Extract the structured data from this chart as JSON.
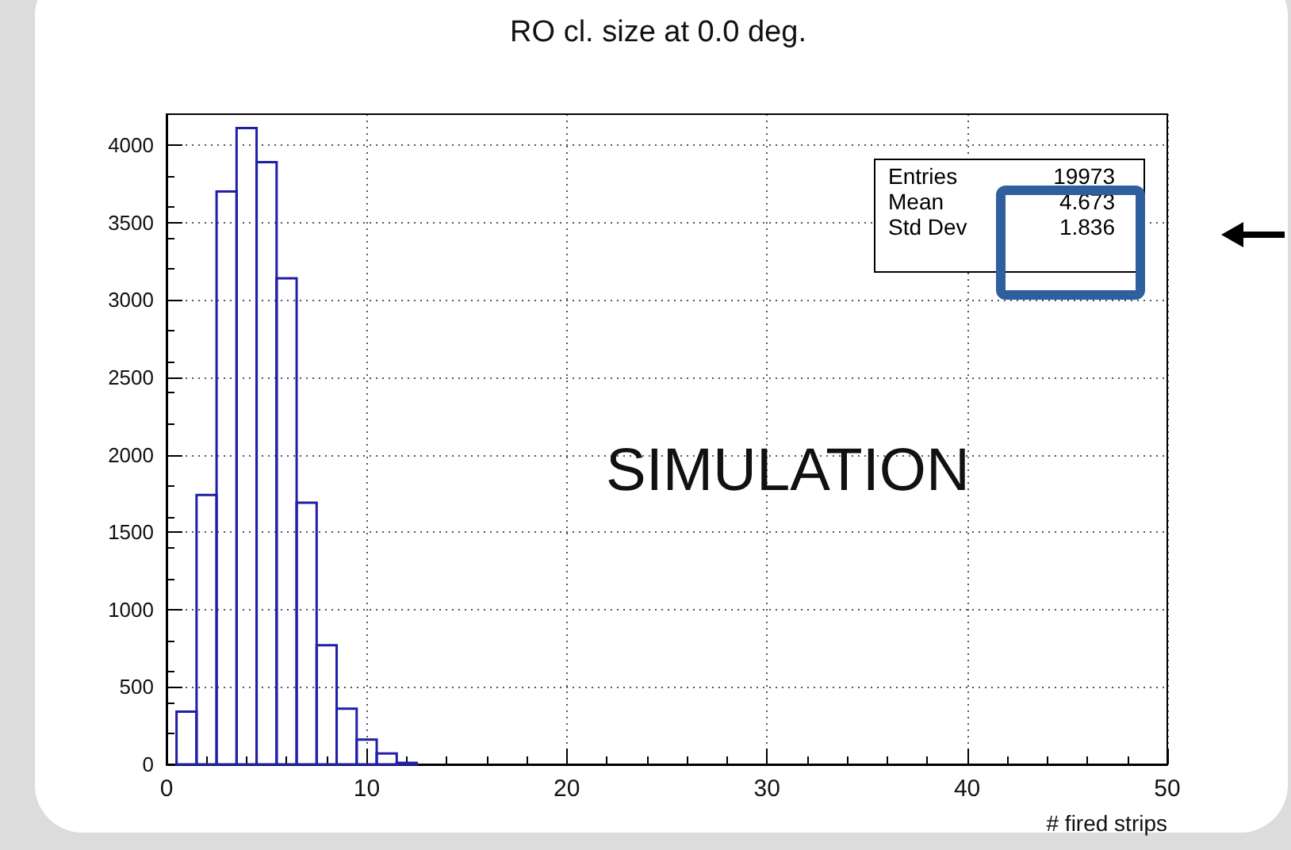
{
  "chart_data": {
    "type": "histogram",
    "title": "RO cl. size at 0.0 deg.",
    "xlabel": "# fired strips",
    "bins": [
      0.5,
      1.5,
      2.5,
      3.5,
      4.5,
      5.5,
      6.5,
      7.5,
      8.5,
      9.5,
      10.5,
      11.5,
      12.5
    ],
    "values": [
      340,
      1740,
      3700,
      4110,
      3890,
      3140,
      1690,
      770,
      360,
      160,
      70,
      10
    ],
    "color": "#1f1fa8",
    "xlim": [
      0,
      50
    ],
    "xticks": [
      0,
      10,
      20,
      30,
      40,
      50
    ],
    "ylim": [
      0,
      4200
    ],
    "yticks": [
      0,
      500,
      1000,
      1500,
      2000,
      2500,
      3000,
      3500,
      4000
    ],
    "grid": true,
    "annotations": [
      "Entries",
      "19973",
      "Mean",
      "4.673",
      "Std Dev",
      "1.836",
      "SIMULATION"
    ]
  }
}
